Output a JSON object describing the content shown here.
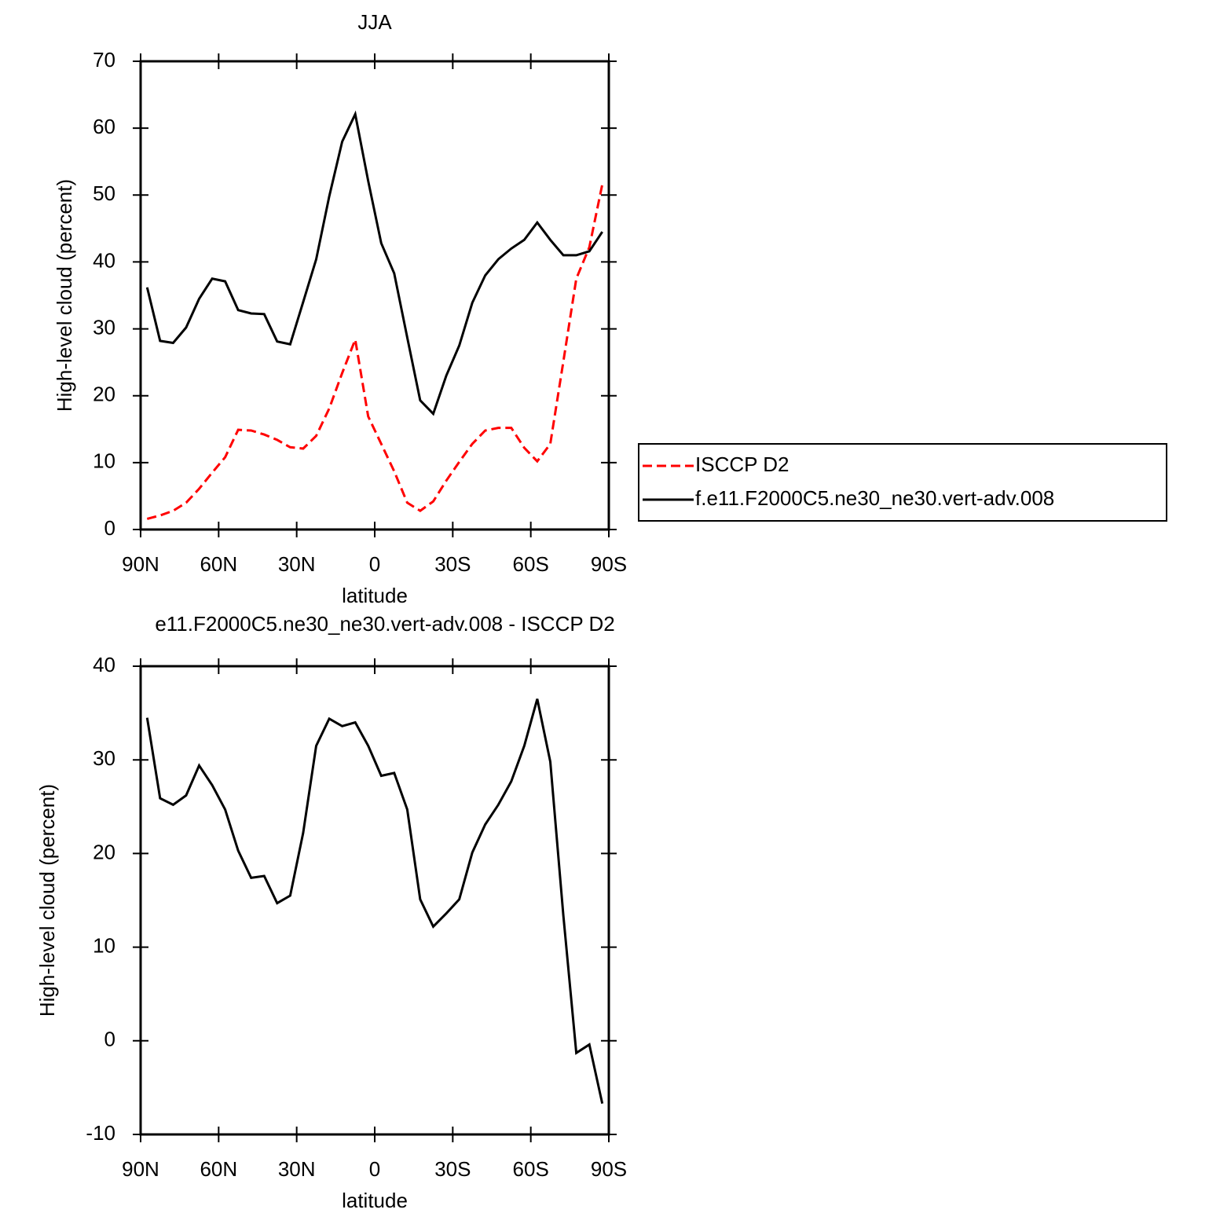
{
  "chart_data": [
    {
      "type": "line",
      "title": "JJA",
      "xlabel": "latitude",
      "ylabel": "High-level cloud (percent)",
      "x": [
        87.5,
        82.5,
        77.5,
        72.5,
        67.5,
        62.5,
        57.5,
        52.5,
        47.5,
        42.5,
        37.5,
        32.5,
        27.5,
        22.5,
        17.5,
        12.5,
        7.5,
        2.5,
        -2.5,
        -7.5,
        -12.5,
        -17.5,
        -22.5,
        -27.5,
        -32.5,
        -37.5,
        -42.5,
        -47.5,
        -52.5,
        -57.5,
        -62.5,
        -67.5,
        -72.5,
        -77.5,
        -82.5,
        -87.5
      ],
      "xlim": [
        90,
        -90
      ],
      "xticks": [
        {
          "value": 90,
          "label": "90N"
        },
        {
          "value": 60,
          "label": "60N"
        },
        {
          "value": 30,
          "label": "30N"
        },
        0,
        {
          "value": -30,
          "label": "30S"
        },
        {
          "value": -60,
          "label": "60S"
        },
        {
          "value": -90,
          "label": "90S"
        }
      ],
      "ylim": [
        0,
        70
      ],
      "yticks": [
        0,
        10,
        20,
        30,
        40,
        50,
        60,
        70
      ],
      "legend": "right",
      "series": [
        {
          "name": "ISCCP D2",
          "color": "#ff0000",
          "dashed": true,
          "values": [
            1.6,
            2.1,
            2.8,
            4,
            6.1,
            8.5,
            10.8,
            14.9,
            14.8,
            14.2,
            13.4,
            12.3,
            12.1,
            14,
            18.1,
            23.4,
            28.4,
            16.9,
            12.8,
            8.7,
            4,
            2.8,
            4.2,
            7.3,
            10.1,
            12.8,
            14.8,
            15.2,
            15.2,
            12.2,
            10.2,
            12.8,
            25.1,
            37.5,
            42.2,
            51.6
          ]
        },
        {
          "name": "f.e11.F2000C5.ne30_ne30.vert-adv.008",
          "color": "#000000",
          "dashed": false,
          "values": [
            36.2,
            28.2,
            27.9,
            30.2,
            34.5,
            37.5,
            37.1,
            32.8,
            32.3,
            32.2,
            28.1,
            27.7,
            34,
            40.4,
            49.8,
            58,
            62.1,
            52.1,
            42.8,
            38.3,
            28.7,
            19.3,
            17.3,
            23,
            27.5,
            33.9,
            38,
            40.4,
            42,
            43.3,
            45.9,
            43.3,
            41,
            41,
            41.6,
            44.5
          ]
        }
      ]
    },
    {
      "type": "line",
      "title": "e11.F2000C5.ne30_ne30.vert-adv.008 - ISCCP D2",
      "xlabel": "latitude",
      "ylabel": "High-level cloud (percent)",
      "x": [
        87.5,
        82.5,
        77.5,
        72.5,
        67.5,
        62.5,
        57.5,
        52.5,
        47.5,
        42.5,
        37.5,
        32.5,
        27.5,
        22.5,
        17.5,
        12.5,
        7.5,
        2.5,
        -2.5,
        -7.5,
        -12.5,
        -17.5,
        -22.5,
        -27.5,
        -32.5,
        -37.5,
        -42.5,
        -47.5,
        -52.5,
        -57.5,
        -62.5,
        -67.5,
        -72.5,
        -77.5,
        -82.5,
        -87.5
      ],
      "xlim": [
        90,
        -90
      ],
      "xticks": [
        {
          "value": 90,
          "label": "90N"
        },
        {
          "value": 60,
          "label": "60N"
        },
        {
          "value": 30,
          "label": "30N"
        },
        0,
        {
          "value": -30,
          "label": "30S"
        },
        {
          "value": -60,
          "label": "60S"
        },
        {
          "value": -90,
          "label": "90S"
        }
      ],
      "ylim": [
        -10,
        40
      ],
      "yticks": [
        -10,
        0,
        10,
        20,
        30,
        40
      ],
      "series": [
        {
          "color": "#000000",
          "dashed": false,
          "values": [
            34.5,
            25.9,
            25.2,
            26.2,
            29.4,
            27.3,
            24.7,
            20.3,
            17.4,
            17.6,
            14.7,
            15.5,
            22.2,
            31.5,
            34.4,
            33.6,
            34,
            31.5,
            28.3,
            28.6,
            24.7,
            15.1,
            12.2,
            13.6,
            15.1,
            20.1,
            23.1,
            25.2,
            27.7,
            31.5,
            36.5,
            29.8,
            13.4,
            -1.3,
            -0.4,
            -6.7
          ]
        }
      ]
    }
  ]
}
